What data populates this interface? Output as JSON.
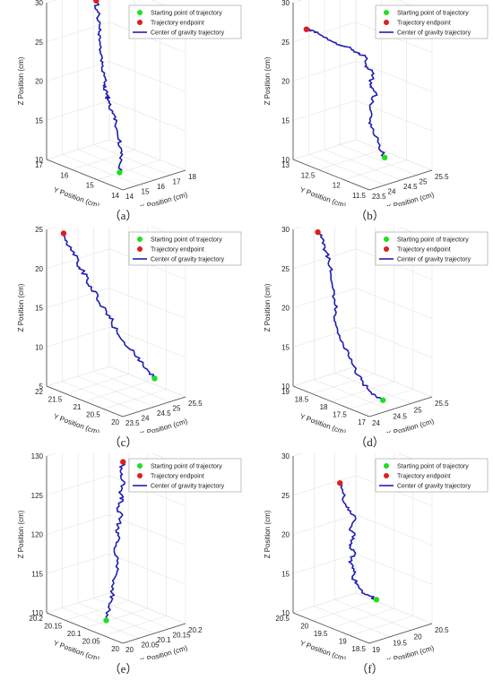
{
  "colors": {
    "trajectory": "#1f1fb0",
    "start": "#22dd22",
    "end": "#dd1f1f",
    "axis": "#444444",
    "grid": "#e4e4e4"
  },
  "chart_data": [
    {
      "type": "line",
      "caption": "（a）",
      "legend": [
        "Starting point of trajectory",
        "Trajectory endpoint",
        "Center of gravity trajectory"
      ],
      "legend_position": "top-right",
      "xlabel": "X Position (cm)",
      "ylabel": "Y Position (cm)",
      "zlabel": "Z Position (cm)",
      "xlim": [
        14,
        18
      ],
      "ylim": [
        14,
        17
      ],
      "zlim": [
        10,
        30
      ],
      "x_ticks": [
        "14",
        "15",
        "16",
        "17",
        "18"
      ],
      "y_ticks": [
        "14",
        "15",
        "16",
        "17"
      ],
      "z_ticks": [
        "10",
        "15",
        "20",
        "25",
        "30"
      ],
      "grid": true,
      "start": {
        "x": 14.6,
        "y": 14.5,
        "z": 11.2
      },
      "end": {
        "x": 17.0,
        "y": 16.9,
        "z": 28.5
      },
      "x": [
        14.6,
        14.9,
        15.2,
        15.3,
        15.5,
        15.6,
        15.7,
        15.8,
        15.9,
        16.0,
        16.1,
        16.2,
        16.3,
        16.4,
        16.5,
        16.6,
        16.7,
        16.8,
        16.9,
        17.0
      ],
      "y": [
        14.5,
        14.6,
        14.8,
        15.0,
        15.2,
        15.4,
        15.6,
        15.7,
        15.8,
        15.9,
        16.0,
        16.1,
        16.2,
        16.3,
        16.4,
        16.5,
        16.6,
        16.7,
        16.8,
        16.9
      ],
      "z": [
        11.2,
        12.5,
        13.5,
        14.8,
        16.0,
        17.0,
        18.0,
        18.6,
        18.2,
        19.0,
        19.5,
        20.5,
        21.5,
        22.5,
        23.5,
        24.8,
        25.5,
        26.3,
        27.5,
        28.5
      ]
    },
    {
      "type": "line",
      "caption": "（b）",
      "legend": [
        "Starting point of trajectory",
        "Trajectory endpoint",
        "Center of gravity trajectory"
      ],
      "legend_position": "top-right",
      "xlabel": "X Position (cm)",
      "ylabel": "Y Position (cm)",
      "zlabel": "Z Position (cm)",
      "xlim": [
        23.5,
        25.5
      ],
      "ylim": [
        11.5,
        13
      ],
      "zlim": [
        10,
        30
      ],
      "x_ticks": [
        "23.5",
        "24",
        "24.5",
        "25",
        "25.5"
      ],
      "y_ticks": [
        "11.5",
        "12",
        "12.5",
        "13"
      ],
      "z_ticks": [
        "10",
        "15",
        "20",
        "25",
        "30"
      ],
      "grid": true,
      "start": {
        "x": 24.8,
        "y": 12.0,
        "z": 11.2
      },
      "end": {
        "x": 23.6,
        "y": 12.8,
        "z": 27.0
      },
      "x": [
        24.8,
        24.7,
        24.75,
        24.6,
        24.7,
        24.8,
        25.0,
        24.9,
        25.1,
        24.9,
        25.0,
        24.8,
        24.6,
        24.3,
        24.1,
        23.9,
        23.7,
        23.6
      ],
      "y": [
        12.0,
        12.05,
        12.1,
        12.15,
        12.2,
        12.25,
        12.3,
        12.35,
        12.4,
        12.45,
        12.5,
        12.55,
        12.6,
        12.65,
        12.7,
        12.75,
        12.78,
        12.8
      ],
      "z": [
        11.2,
        12.5,
        13.5,
        15.0,
        16.0,
        17.5,
        18.5,
        19.5,
        20.5,
        21.5,
        22.5,
        23.2,
        24.0,
        24.8,
        25.5,
        26.2,
        26.8,
        27.0
      ]
    },
    {
      "type": "line",
      "caption": "（c）",
      "legend": [
        "Starting point of trajectory",
        "Trajectory endpoint",
        "Center of gravity trajectory"
      ],
      "legend_position": "top-right",
      "xlabel": "X Position (cm)",
      "ylabel": "Y Position (cm)",
      "zlabel": "Z Position (cm)",
      "xlim": [
        23.5,
        25.5
      ],
      "ylim": [
        20,
        22
      ],
      "zlim": [
        5,
        25
      ],
      "x_ticks": [
        "23.5",
        "24",
        "24.5",
        "25",
        "25.5"
      ],
      "y_ticks": [
        "20",
        "20.5",
        "21",
        "21.5",
        "22"
      ],
      "z_ticks": [
        "5",
        "10",
        "15",
        "20",
        "25"
      ],
      "grid": true,
      "start": {
        "x": 25.0,
        "y": 20.4,
        "z": 7.2
      },
      "end": {
        "x": 23.8,
        "y": 21.8,
        "z": 24.5
      },
      "x": [
        25.0,
        24.9,
        24.75,
        24.6,
        24.4,
        24.3,
        24.25,
        24.2,
        24.1,
        24.15,
        24.0,
        24.05,
        23.95,
        24.0,
        23.9,
        23.85,
        23.8
      ],
      "y": [
        20.4,
        20.45,
        20.5,
        20.6,
        20.7,
        20.8,
        20.9,
        21.0,
        21.1,
        21.2,
        21.3,
        21.4,
        21.5,
        21.6,
        21.7,
        21.75,
        21.8
      ],
      "z": [
        7.2,
        8.0,
        9.0,
        10.5,
        12.0,
        13.0,
        14.5,
        15.5,
        16.5,
        17.5,
        18.5,
        19.5,
        20.5,
        21.5,
        22.5,
        23.5,
        24.5
      ]
    },
    {
      "type": "line",
      "caption": "（d）",
      "legend": [
        "Starting point of trajectory",
        "Trajectory endpoint",
        "Center of gravity trajectory"
      ],
      "legend_position": "top-right",
      "xlabel": "X Position (cm)",
      "ylabel": "Y Position (cm)",
      "zlabel": "Z Position (cm)",
      "xlim": [
        24,
        25.5
      ],
      "ylim": [
        17,
        19
      ],
      "zlim": [
        10,
        30
      ],
      "x_ticks": [
        "24",
        "24.5",
        "25",
        "25.5"
      ],
      "y_ticks": [
        "17",
        "17.5",
        "18",
        "18.5",
        "19"
      ],
      "z_ticks": [
        "10",
        "15",
        "20",
        "25",
        "30"
      ],
      "grid": true,
      "start": {
        "x": 24.6,
        "y": 17.3,
        "z": 10.5
      },
      "end": {
        "x": 24.5,
        "y": 18.9,
        "z": 29.0
      },
      "x": [
        24.6,
        24.5,
        24.4,
        24.35,
        24.3,
        24.25,
        24.2,
        24.15,
        24.2,
        24.3,
        24.35,
        24.4,
        24.45,
        24.5,
        24.5,
        24.55,
        24.5
      ],
      "y": [
        17.3,
        17.4,
        17.5,
        17.6,
        17.7,
        17.8,
        17.9,
        18.0,
        18.1,
        18.2,
        18.3,
        18.4,
        18.5,
        18.6,
        18.7,
        18.8,
        18.9
      ],
      "z": [
        10.5,
        11.2,
        12.0,
        13.0,
        14.0,
        15.5,
        17.0,
        18.5,
        19.5,
        20.5,
        21.5,
        23.0,
        24.5,
        26.0,
        27.0,
        28.0,
        29.0
      ]
    },
    {
      "type": "line",
      "caption": "（e）",
      "legend": [
        "Starting point of trajectory",
        "Trajectory endpoint",
        "Center of gravity trajectory"
      ],
      "legend_position": "top-right",
      "xlabel": "X Position (cm)",
      "ylabel": "Y Position (cm)",
      "zlabel": "Z Position (cm)",
      "xlim": [
        20,
        20.2
      ],
      "ylim": [
        20,
        20.2
      ],
      "zlim": [
        110,
        130
      ],
      "x_ticks": [
        "20",
        "20.05",
        "20.1",
        "20.15",
        "20.2"
      ],
      "y_ticks": [
        "20",
        "20.05",
        "20.1",
        "20.15",
        "20.2"
      ],
      "z_ticks": [
        "110",
        "115",
        "120",
        "125",
        "130"
      ],
      "grid": true,
      "start": {
        "x": 20.02,
        "y": 20.06,
        "z": 111.5
      },
      "end": {
        "x": 20.11,
        "y": 20.09,
        "z": 130.0
      },
      "x": [
        20.02,
        20.03,
        20.04,
        20.05,
        20.06,
        20.07,
        20.06,
        20.08,
        20.07,
        20.09,
        20.08,
        20.1,
        20.09,
        20.11,
        20.1,
        20.11
      ],
      "y": [
        20.06,
        20.062,
        20.064,
        20.066,
        20.068,
        20.07,
        20.072,
        20.074,
        20.076,
        20.078,
        20.08,
        20.082,
        20.084,
        20.086,
        20.088,
        20.09
      ],
      "z": [
        111.5,
        112.5,
        113.5,
        115.0,
        116.5,
        118.0,
        119.5,
        121.0,
        122.0,
        123.5,
        124.5,
        125.5,
        126.5,
        127.5,
        128.8,
        130.0
      ]
    },
    {
      "type": "line",
      "caption": "（f）",
      "legend": [
        "Starting point of trajectory",
        "Trajectory endpoint",
        "Center of gravity trajectory"
      ],
      "legend_position": "top-right",
      "xlabel": "X Position (cm)",
      "ylabel": "Y Position (cm)",
      "zlabel": "Z Position (cm)",
      "xlim": [
        19,
        20.5
      ],
      "ylim": [
        18.5,
        20.5
      ],
      "zlim": [
        10,
        30
      ],
      "x_ticks": [
        "19",
        "19.5",
        "20",
        "20.5"
      ],
      "y_ticks": [
        "18.5",
        "19",
        "19.5",
        "20",
        "20.5"
      ],
      "z_ticks": [
        "10",
        "15",
        "20",
        "25",
        "30"
      ],
      "grid": true,
      "start": {
        "x": 19.9,
        "y": 19.3,
        "z": 12.5
      },
      "end": {
        "x": 19.3,
        "y": 19.6,
        "z": 27.8
      },
      "x": [
        19.9,
        19.75,
        19.6,
        19.5,
        19.4,
        19.45,
        19.35,
        19.5,
        19.4,
        19.55,
        19.45,
        19.6,
        19.5,
        19.4,
        19.35,
        19.3
      ],
      "y": [
        19.3,
        19.32,
        19.34,
        19.36,
        19.38,
        19.4,
        19.42,
        19.44,
        19.46,
        19.48,
        19.5,
        19.52,
        19.54,
        19.56,
        19.58,
        19.6
      ],
      "z": [
        12.5,
        13.2,
        14.0,
        15.0,
        16.0,
        17.0,
        18.0,
        19.0,
        20.0,
        21.0,
        22.0,
        23.0,
        24.0,
        25.0,
        26.5,
        27.8
      ]
    }
  ]
}
